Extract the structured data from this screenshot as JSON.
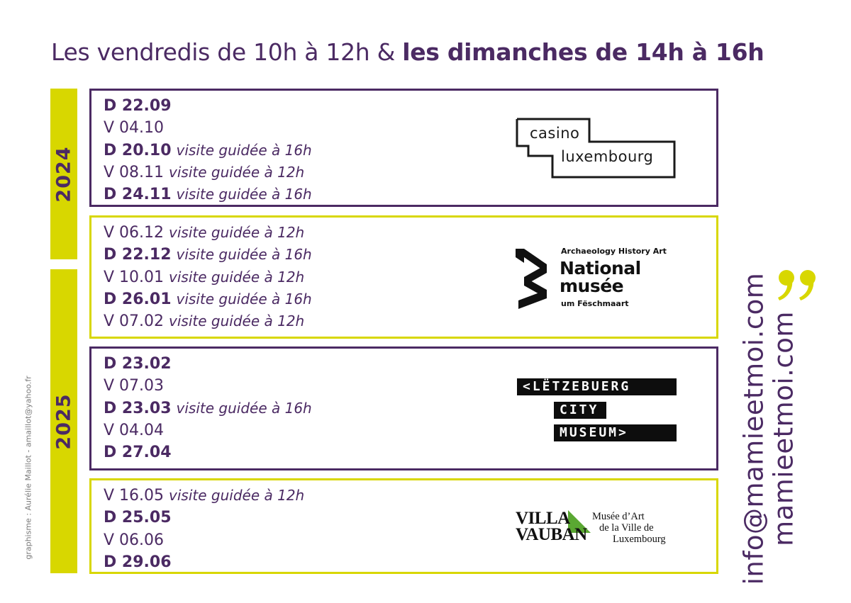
{
  "headline": {
    "part_light": "Les vendredis de 10h à 12h & ",
    "part_bold": "les dimanches de 14h à 16h"
  },
  "years": {
    "y2024": "2024",
    "y2025": "2025"
  },
  "blocks": [
    {
      "museum": "casino luxembourg",
      "logo_lines": [
        "casino",
        "luxembourg"
      ],
      "dates": [
        {
          "day": "D 22.09",
          "note": ""
        },
        {
          "day": "V 04.10",
          "note": ""
        },
        {
          "day": "D 20.10",
          "note": "visite guidée à 16h"
        },
        {
          "day": "V 08.11",
          "note": "visite guidée à 12h"
        },
        {
          "day": "D 24.11",
          "note": "visite guidée à 16h"
        }
      ]
    },
    {
      "museum": "National musée um Fëschmaart",
      "logo_small_top": "Archaeology History Art",
      "logo_big": [
        "National",
        "musée"
      ],
      "logo_small_bottom": "um Fëschmaart",
      "dates": [
        {
          "day": "V 06.12",
          "note": "visite guidée à 12h"
        },
        {
          "day": "D 22.12",
          "note": "visite guidée à 16h"
        },
        {
          "day": "V 10.01",
          "note": "visite guidée à 12h"
        },
        {
          "day": "D 26.01",
          "note": "visite guidée à 16h"
        },
        {
          "day": "V 07.02",
          "note": "visite guidée à 12h"
        }
      ]
    },
    {
      "museum": "Lëtzebuerg City Museum",
      "logo_lines": [
        "<LËTZEBUERG",
        "CITY",
        "MUSEUM>"
      ],
      "dates": [
        {
          "day": "D 23.02",
          "note": ""
        },
        {
          "day": "V 07.03",
          "note": ""
        },
        {
          "day": "D 23.03",
          "note": "visite guidée à 16h"
        },
        {
          "day": "V 04.04",
          "note": ""
        },
        {
          "day": "D 27.04",
          "note": ""
        }
      ]
    },
    {
      "museum": "Villa Vauban",
      "logo_lines": [
        "VILLA",
        "VAUBAN"
      ],
      "logo_sub": [
        "Musée d’Art",
        "de la Ville de",
        "Luxembourg"
      ],
      "dates": [
        {
          "day": "V 16.05",
          "note": "visite guidée à 12h"
        },
        {
          "day": "D 25.05",
          "note": ""
        },
        {
          "day": "V 06.06",
          "note": ""
        },
        {
          "day": "D 29.06",
          "note": ""
        }
      ]
    }
  ],
  "credit": "graphisme : Aurélie Maillot - amaillot@yahoo.fr",
  "contact": {
    "email": "info@mamieetmoi.com",
    "website": "mamieetmoi.com"
  },
  "colors": {
    "purple": "#4b2a63",
    "lime": "#d8d700",
    "green": "#5aa832"
  }
}
